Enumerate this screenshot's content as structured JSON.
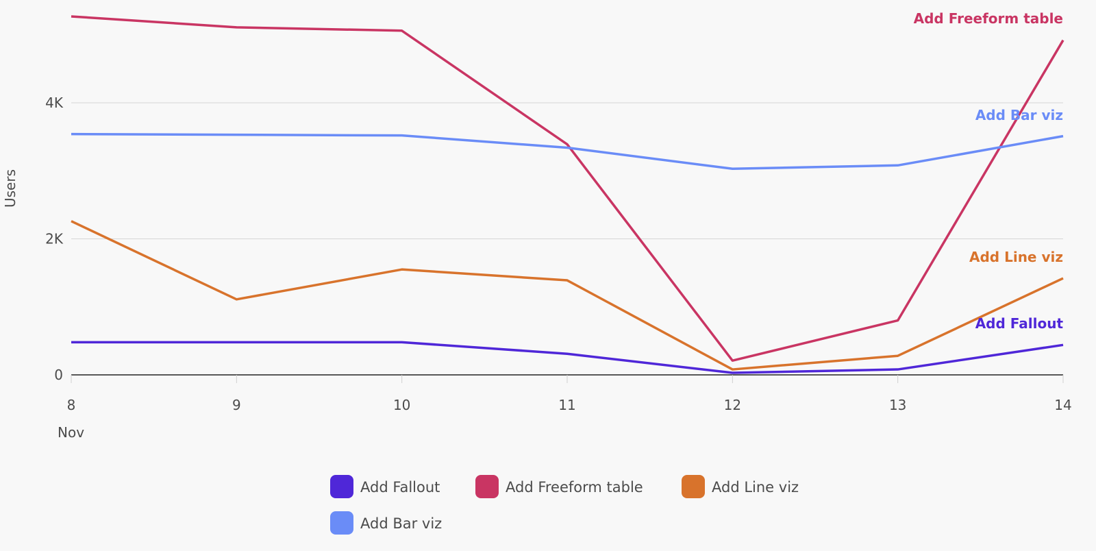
{
  "chart_data": {
    "type": "line",
    "title": "",
    "xlabel": "",
    "ylabel": "Users",
    "x": [
      "8",
      "9",
      "10",
      "11",
      "12",
      "13",
      "14"
    ],
    "x_sublabel": "Nov",
    "yticks": [
      {
        "value": 0,
        "label": "0"
      },
      {
        "value": 2000,
        "label": "2K"
      },
      {
        "value": 4000,
        "label": "4K"
      }
    ],
    "ylim": [
      0,
      5300
    ],
    "grid": true,
    "legend": "bottom-center",
    "series": [
      {
        "name": "Add Fallout",
        "color": "#4F27D8",
        "values": [
          480,
          480,
          480,
          310,
          30,
          80,
          440
        ]
      },
      {
        "name": "Add Freeform table",
        "color": "#C93563",
        "values": [
          5270,
          5110,
          5060,
          3390,
          210,
          800,
          4920
        ]
      },
      {
        "name": "Add Line viz",
        "color": "#D8732C",
        "values": [
          2260,
          1110,
          1550,
          1390,
          80,
          280,
          1420
        ]
      },
      {
        "name": "Add Bar viz",
        "color": "#6A8CF7",
        "values": [
          3540,
          3530,
          3520,
          3340,
          3030,
          3080,
          3510
        ]
      }
    ]
  }
}
